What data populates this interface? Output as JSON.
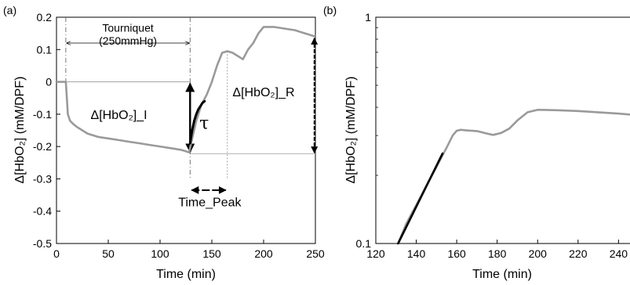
{
  "chart_data": [
    {
      "panel_label": "(a)",
      "type": "line",
      "xlabel": "Time (min)",
      "ylabel": "Δ[HbO₂] (mM/DPF)",
      "xlim": [
        0,
        250
      ],
      "ylim": [
        -0.5,
        0.2
      ],
      "xticks": [
        0,
        50,
        100,
        150,
        200,
        250
      ],
      "yticks": [
        -0.5,
        -0.4,
        -0.3,
        -0.2,
        -0.1,
        0,
        0.1,
        0.2
      ],
      "ytick_labels": [
        "-0.5",
        "-0.4",
        "-0.3",
        "-0.2",
        "-0.1",
        "0",
        "0.1",
        "0.2"
      ],
      "grid": false,
      "series": [
        {
          "color": "#9a9a9a",
          "x": [
            0,
            5,
            9,
            10,
            11,
            13,
            16,
            20,
            25,
            30,
            40,
            50,
            60,
            70,
            80,
            90,
            100,
            110,
            120,
            125,
            128,
            130,
            135,
            140,
            145,
            150,
            155,
            160,
            165,
            170,
            175,
            180,
            185,
            190,
            195,
            200,
            210,
            220,
            230,
            240,
            250
          ],
          "y": [
            0.0,
            0.0,
            0.0,
            -0.05,
            -0.1,
            -0.12,
            -0.13,
            -0.14,
            -0.15,
            -0.16,
            -0.17,
            -0.175,
            -0.18,
            -0.185,
            -0.19,
            -0.195,
            -0.2,
            -0.205,
            -0.21,
            -0.215,
            -0.218,
            -0.19,
            -0.12,
            -0.07,
            -0.04,
            0.0,
            0.05,
            0.09,
            0.095,
            0.09,
            0.08,
            0.07,
            0.1,
            0.12,
            0.15,
            0.17,
            0.17,
            0.165,
            0.16,
            0.15,
            0.14
          ]
        }
      ],
      "fit": {
        "color": "#000000",
        "x": [
          129,
          131,
          133,
          135,
          137,
          139,
          141,
          143
        ],
        "y": [
          -0.19,
          -0.15,
          -0.12,
          -0.1,
          -0.085,
          -0.075,
          -0.065,
          -0.06
        ]
      },
      "reference_lines": {
        "tourniquet_on_x": 9,
        "tourniquet_off_x": 129,
        "peak_x": 165,
        "baseline_y": 0,
        "min_y": -0.222
      },
      "annotations": {
        "tourniquet_line1": "Tourniquet",
        "tourniquet_line2": "(250mmHg)",
        "delta_i": "Δ[HbO₂]_I",
        "delta_r": "Δ[HbO₂]_R",
        "tau": "τ",
        "time_peak": "Time_Peak"
      }
    },
    {
      "panel_label": "(b)",
      "type": "line",
      "xlabel": "Time (min)",
      "ylabel": "Δ[HbO₂] (mM/DPF)",
      "xlim": [
        120,
        248
      ],
      "yscale": "log",
      "ylim": [
        0.1,
        1
      ],
      "xticks": [
        120,
        140,
        160,
        180,
        200,
        220,
        240
      ],
      "yticks": [
        0.1,
        1
      ],
      "ytick_labels": [
        "0.1",
        "1"
      ],
      "grid": false,
      "series": [
        {
          "color": "#9a9a9a",
          "x": [
            131,
            135,
            140,
            145,
            150,
            155,
            158,
            160,
            162,
            165,
            170,
            175,
            178,
            182,
            186,
            190,
            195,
            200,
            210,
            220,
            230,
            240,
            248
          ],
          "y": [
            0.1,
            0.122,
            0.148,
            0.18,
            0.218,
            0.265,
            0.3,
            0.315,
            0.318,
            0.316,
            0.314,
            0.306,
            0.302,
            0.308,
            0.322,
            0.35,
            0.38,
            0.39,
            0.388,
            0.385,
            0.38,
            0.375,
            0.37
          ]
        }
      ],
      "fit": {
        "color": "#000000",
        "x": [
          131,
          153
        ],
        "y": [
          0.1,
          0.25
        ]
      }
    }
  ]
}
